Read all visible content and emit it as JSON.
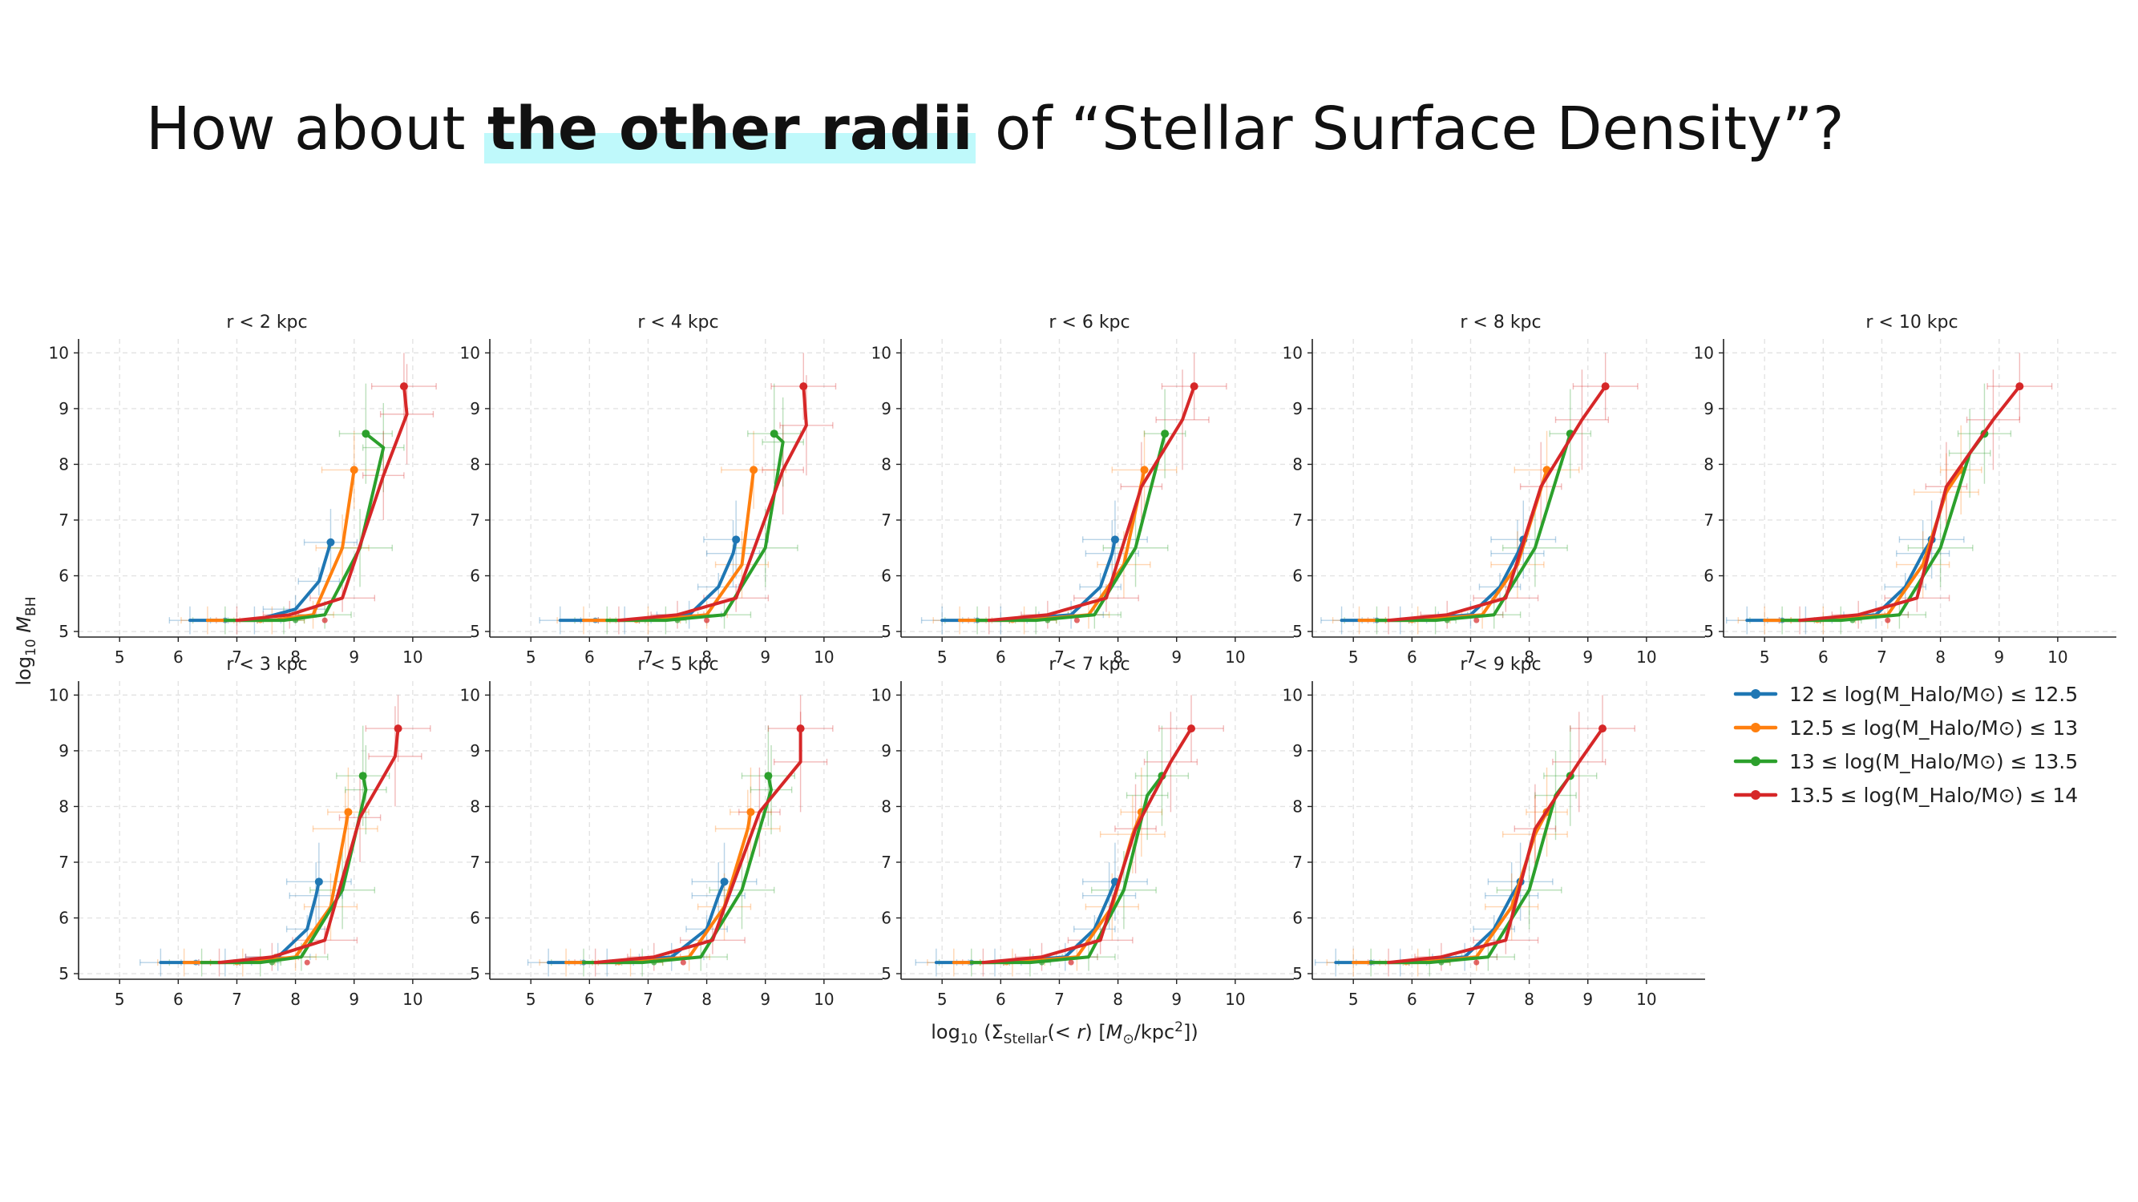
{
  "slide": {
    "title_prefix": "How about ",
    "title_highlight": "the other radii",
    "title_suffix": " of “Stellar Surface Density”?",
    "highlight_color": "#bff9fb"
  },
  "chart_data": {
    "type": "line",
    "title": "",
    "xlabel": "log₁₀ (Σ_Stellar(< r) [M⊙/kpc²])",
    "ylabel": "log₁₀ M_BH",
    "xlim": [
      4.3,
      11.0
    ],
    "ylim": [
      4.9,
      10.25
    ],
    "xticks": [
      5,
      6,
      7,
      8,
      9,
      10
    ],
    "yticks": [
      5,
      6,
      7,
      8,
      9,
      10
    ],
    "grid": true,
    "legend_position": "right",
    "series_meta": [
      {
        "name": "12 ≤ log(M_Halo/M⊙) ≤ 12.5",
        "color": "#1f77b4"
      },
      {
        "name": "12.5 ≤ log(M_Halo/M⊙) ≤ 13",
        "color": "#ff7f0e"
      },
      {
        "name": "13 ≤ log(M_Halo/M⊙) ≤ 13.5",
        "color": "#2ca02c"
      },
      {
        "name": "13.5 ≤ log(M_Halo/M⊙) ≤ 14",
        "color": "#d62728"
      }
    ],
    "panels": [
      {
        "label": "r < 2 kpc",
        "series": [
          {
            "x": [
              6.2,
              7.3,
              8.0,
              8.4,
              8.6
            ],
            "y": [
              5.2,
              5.2,
              5.4,
              5.9,
              6.6
            ]
          },
          {
            "x": [
              6.5,
              7.6,
              8.3,
              8.8,
              9.0
            ],
            "y": [
              5.2,
              5.2,
              5.3,
              6.5,
              7.9
            ]
          },
          {
            "x": [
              6.8,
              7.8,
              8.5,
              9.1,
              9.5,
              9.2
            ],
            "y": [
              5.2,
              5.2,
              5.3,
              6.5,
              8.3,
              8.55
            ]
          },
          {
            "x": [
              7.0,
              7.9,
              8.8,
              9.5,
              9.9,
              9.85
            ],
            "y": [
              5.2,
              5.3,
              5.6,
              7.8,
              8.9,
              9.4
            ]
          }
        ]
      },
      {
        "label": "r < 4 kpc",
        "series": [
          {
            "x": [
              5.5,
              6.6,
              7.7,
              8.2,
              8.45,
              8.5
            ],
            "y": [
              5.2,
              5.2,
              5.3,
              5.8,
              6.4,
              6.65
            ]
          },
          {
            "x": [
              5.9,
              7.0,
              8.0,
              8.6,
              8.8
            ],
            "y": [
              5.2,
              5.2,
              5.3,
              6.2,
              7.9
            ]
          },
          {
            "x": [
              6.3,
              7.3,
              8.3,
              9.0,
              9.3,
              9.15
            ],
            "y": [
              5.2,
              5.2,
              5.3,
              6.5,
              8.4,
              8.55
            ]
          },
          {
            "x": [
              6.5,
              7.5,
              8.5,
              9.3,
              9.7,
              9.65
            ],
            "y": [
              5.2,
              5.3,
              5.6,
              7.9,
              8.7,
              9.4
            ]
          }
        ]
      },
      {
        "label": "r < 6 kpc",
        "series": [
          {
            "x": [
              5.0,
              6.0,
              7.2,
              7.7,
              7.9,
              7.95
            ],
            "y": [
              5.2,
              5.2,
              5.3,
              5.8,
              6.4,
              6.65
            ]
          },
          {
            "x": [
              5.3,
              6.4,
              7.5,
              8.1,
              8.45
            ],
            "y": [
              5.2,
              5.2,
              5.3,
              6.2,
              7.9
            ]
          },
          {
            "x": [
              5.6,
              6.6,
              7.6,
              8.3,
              8.8
            ],
            "y": [
              5.2,
              5.2,
              5.3,
              6.5,
              8.55
            ]
          },
          {
            "x": [
              5.8,
              6.8,
              7.8,
              8.4,
              9.1,
              9.3
            ],
            "y": [
              5.2,
              5.3,
              5.6,
              7.6,
              8.8,
              9.4
            ]
          }
        ]
      },
      {
        "label": "r < 8 kpc",
        "series": [
          {
            "x": [
              4.8,
              5.8,
              7.0,
              7.5,
              7.8,
              7.9
            ],
            "y": [
              5.2,
              5.2,
              5.3,
              5.8,
              6.4,
              6.65
            ]
          },
          {
            "x": [
              5.1,
              6.1,
              7.2,
              7.8,
              8.3
            ],
            "y": [
              5.2,
              5.2,
              5.3,
              6.2,
              7.9
            ]
          },
          {
            "x": [
              5.4,
              6.4,
              7.4,
              8.1,
              8.7
            ],
            "y": [
              5.2,
              5.2,
              5.3,
              6.5,
              8.55
            ]
          },
          {
            "x": [
              5.6,
              6.6,
              7.6,
              8.2,
              8.9,
              9.3
            ],
            "y": [
              5.2,
              5.3,
              5.6,
              7.6,
              8.8,
              9.4
            ]
          }
        ]
      },
      {
        "label": "r < 10 kpc",
        "series": [
          {
            "x": [
              4.7,
              5.7,
              6.9,
              7.4,
              7.7,
              7.85
            ],
            "y": [
              5.2,
              5.2,
              5.3,
              5.8,
              6.4,
              6.65
            ]
          },
          {
            "x": [
              5.0,
              6.0,
              7.1,
              7.7,
              8.1,
              8.35
            ],
            "y": [
              5.2,
              5.2,
              5.3,
              6.2,
              7.5,
              7.9
            ]
          },
          {
            "x": [
              5.3,
              6.3,
              7.3,
              8.0,
              8.5,
              8.75
            ],
            "y": [
              5.2,
              5.2,
              5.3,
              6.5,
              8.2,
              8.55
            ]
          },
          {
            "x": [
              5.6,
              6.6,
              7.6,
              8.1,
              8.9,
              9.35
            ],
            "y": [
              5.2,
              5.3,
              5.6,
              7.6,
              8.8,
              9.4
            ]
          }
        ]
      },
      {
        "label": "r < 3 kpc",
        "series": [
          {
            "x": [
              5.7,
              6.8,
              7.7,
              8.2,
              8.35,
              8.4
            ],
            "y": [
              5.2,
              5.2,
              5.3,
              5.8,
              6.4,
              6.65
            ]
          },
          {
            "x": [
              6.1,
              7.1,
              8.0,
              8.6,
              8.85,
              8.9
            ],
            "y": [
              5.2,
              5.2,
              5.3,
              6.2,
              7.6,
              7.9
            ]
          },
          {
            "x": [
              6.4,
              7.4,
              8.1,
              8.8,
              9.2,
              9.15
            ],
            "y": [
              5.2,
              5.2,
              5.3,
              6.5,
              8.3,
              8.55
            ]
          },
          {
            "x": [
              6.7,
              7.6,
              8.5,
              9.1,
              9.7,
              9.75
            ],
            "y": [
              5.2,
              5.3,
              5.6,
              7.8,
              8.9,
              9.4
            ]
          }
        ]
      },
      {
        "label": "r < 5 kpc",
        "series": [
          {
            "x": [
              5.3,
              6.3,
              7.4,
              8.0,
              8.2,
              8.3
            ],
            "y": [
              5.2,
              5.2,
              5.3,
              5.8,
              6.4,
              6.65
            ]
          },
          {
            "x": [
              5.6,
              6.7,
              7.7,
              8.3,
              8.7,
              8.75
            ],
            "y": [
              5.2,
              5.2,
              5.3,
              6.2,
              7.6,
              7.9
            ]
          },
          {
            "x": [
              5.9,
              6.9,
              7.9,
              8.6,
              9.1,
              9.05
            ],
            "y": [
              5.2,
              5.2,
              5.3,
              6.5,
              8.3,
              8.55
            ]
          },
          {
            "x": [
              6.1,
              7.1,
              8.1,
              8.9,
              9.6,
              9.6
            ],
            "y": [
              5.2,
              5.3,
              5.6,
              7.9,
              8.8,
              9.4
            ]
          }
        ]
      },
      {
        "label": "r < 7 kpc",
        "series": [
          {
            "x": [
              4.9,
              5.9,
              7.1,
              7.6,
              7.85,
              7.95
            ],
            "y": [
              5.2,
              5.2,
              5.3,
              5.8,
              6.4,
              6.65
            ]
          },
          {
            "x": [
              5.2,
              6.2,
              7.3,
              7.9,
              8.25,
              8.4
            ],
            "y": [
              5.2,
              5.2,
              5.3,
              6.2,
              7.5,
              7.9
            ]
          },
          {
            "x": [
              5.5,
              6.5,
              7.5,
              8.1,
              8.5,
              8.75
            ],
            "y": [
              5.2,
              5.2,
              5.3,
              6.5,
              8.2,
              8.55
            ]
          },
          {
            "x": [
              5.7,
              6.7,
              7.7,
              8.3,
              8.9,
              9.25
            ],
            "y": [
              5.2,
              5.3,
              5.6,
              7.6,
              8.8,
              9.4
            ]
          }
        ]
      },
      {
        "label": "r < 9 kpc",
        "series": [
          {
            "x": [
              4.7,
              5.8,
              6.9,
              7.4,
              7.7,
              7.85
            ],
            "y": [
              5.2,
              5.2,
              5.3,
              5.8,
              6.4,
              6.65
            ]
          },
          {
            "x": [
              5.0,
              6.1,
              7.1,
              7.7,
              8.1,
              8.3
            ],
            "y": [
              5.2,
              5.2,
              5.3,
              6.2,
              7.5,
              7.9
            ]
          },
          {
            "x": [
              5.3,
              6.3,
              7.3,
              8.0,
              8.45,
              8.7
            ],
            "y": [
              5.2,
              5.2,
              5.3,
              6.5,
              8.2,
              8.55
            ]
          },
          {
            "x": [
              5.6,
              6.5,
              7.6,
              8.1,
              8.85,
              9.25
            ],
            "y": [
              5.2,
              5.3,
              5.6,
              7.6,
              8.8,
              9.4
            ]
          }
        ]
      }
    ]
  }
}
